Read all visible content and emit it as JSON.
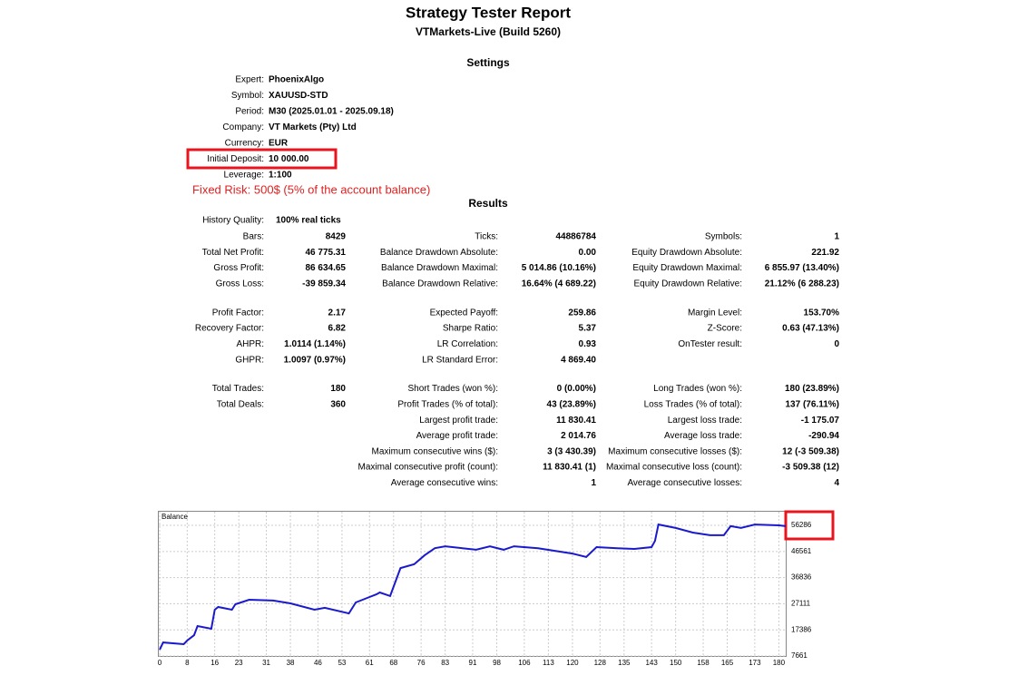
{
  "header": {
    "title": "Strategy Tester Report",
    "subtitle": "VTMarkets-Live (Build 5260)"
  },
  "settings": {
    "heading": "Settings",
    "rows": [
      [
        "Expert:",
        "PhoenixAlgo"
      ],
      [
        "Symbol:",
        "XAUUSD-STD"
      ],
      [
        "Period:",
        "M30 (2025.01.01 - 2025.09.18)"
      ],
      [
        "Company:",
        "VT Markets (Pty) Ltd"
      ],
      [
        "Currency:",
        "EUR"
      ],
      [
        "Initial Deposit:",
        "10 000.00"
      ],
      [
        "Leverage:",
        "1:100"
      ]
    ]
  },
  "note": "Fixed Risk: 500$ (5% of the account balance)",
  "results": {
    "heading": "Results",
    "history_quality": [
      "History Quality:",
      "100% real ticks"
    ],
    "groups": [
      [
        [
          [
            "Bars:",
            "8429"
          ],
          [
            "Ticks:",
            "44886784"
          ],
          [
            "Symbols:",
            "1"
          ]
        ],
        [
          [
            "Total Net Profit:",
            "46 775.31"
          ],
          [
            "Balance Drawdown Absolute:",
            "0.00"
          ],
          [
            "Equity Drawdown Absolute:",
            "221.92"
          ]
        ],
        [
          [
            "Gross Profit:",
            "86 634.65"
          ],
          [
            "Balance Drawdown Maximal:",
            "5 014.86 (10.16%)"
          ],
          [
            "Equity Drawdown Maximal:",
            "6 855.97 (13.40%)"
          ]
        ],
        [
          [
            "Gross Loss:",
            "-39 859.34"
          ],
          [
            "Balance Drawdown Relative:",
            "16.64% (4 689.22)"
          ],
          [
            "Equity Drawdown Relative:",
            "21.12% (6 288.23)"
          ]
        ]
      ],
      [
        [
          [
            "Profit Factor:",
            "2.17"
          ],
          [
            "Expected Payoff:",
            "259.86"
          ],
          [
            "Margin Level:",
            "153.70%"
          ]
        ],
        [
          [
            "Recovery Factor:",
            "6.82"
          ],
          [
            "Sharpe Ratio:",
            "5.37"
          ],
          [
            "Z-Score:",
            "0.63 (47.13%)"
          ]
        ],
        [
          [
            "AHPR:",
            "1.0114 (1.14%)"
          ],
          [
            "LR Correlation:",
            "0.93"
          ],
          [
            "OnTester result:",
            "0"
          ]
        ],
        [
          [
            "GHPR:",
            "1.0097 (0.97%)"
          ],
          [
            "LR Standard Error:",
            "4 869.40"
          ],
          null
        ]
      ],
      [
        [
          [
            "Total Trades:",
            "180"
          ],
          [
            "Short Trades (won %):",
            "0 (0.00%)"
          ],
          [
            "Long Trades (won %):",
            "180 (23.89%)"
          ]
        ],
        [
          [
            "Total Deals:",
            "360"
          ],
          [
            "Profit Trades (% of total):",
            "43 (23.89%)"
          ],
          [
            "Loss Trades (% of total):",
            "137 (76.11%)"
          ]
        ],
        [
          null,
          [
            "Largest profit trade:",
            "11 830.41"
          ],
          [
            "Largest loss trade:",
            "-1 175.07"
          ]
        ],
        [
          null,
          [
            "Average profit trade:",
            "2 014.76"
          ],
          [
            "Average loss trade:",
            "-290.94"
          ]
        ],
        [
          null,
          [
            "Maximum consecutive wins ($):",
            "3 (3 430.39)"
          ],
          [
            "Maximum consecutive losses ($):",
            "12 (-3 509.38)"
          ]
        ],
        [
          null,
          [
            "Maximal consecutive profit (count):",
            "11 830.41 (1)"
          ],
          [
            "Maximal consecutive loss (count):",
            "-3 509.38 (12)"
          ]
        ],
        [
          null,
          [
            "Average consecutive wins:",
            "1"
          ],
          [
            "Average consecutive losses:",
            "4"
          ]
        ]
      ]
    ]
  },
  "chart_data": {
    "type": "line",
    "title": "Balance",
    "x": [
      0,
      1,
      7,
      8,
      10,
      11,
      15,
      16,
      17,
      21,
      22,
      26,
      33,
      38,
      45,
      48,
      55,
      57,
      61,
      63,
      64,
      67,
      70,
      74,
      77,
      80,
      83,
      88,
      92,
      96,
      100,
      103,
      110,
      120,
      124,
      127,
      133,
      138,
      143,
      144,
      145,
      150,
      155,
      160,
      164,
      166,
      169,
      173,
      180,
      182
    ],
    "series": [
      {
        "name": "Balance",
        "color": "#1a1acc",
        "values": [
          10000,
          12700,
          12050,
          13400,
          15400,
          18800,
          17800,
          24900,
          25900,
          24900,
          26900,
          28600,
          28300,
          27250,
          24900,
          25600,
          23500,
          27600,
          29600,
          30600,
          31300,
          30000,
          40400,
          41800,
          45100,
          47800,
          48500,
          47800,
          47200,
          48500,
          47200,
          48500,
          47800,
          45800,
          44500,
          48200,
          47800,
          47500,
          48200,
          50500,
          56600,
          55300,
          53600,
          52600,
          52600,
          56000,
          55300,
          56600,
          56300,
          56000
        ]
      }
    ],
    "xlim": [
      0,
      182
    ],
    "ylim": [
      7661,
      61700
    ],
    "xticks": [
      0,
      8,
      16,
      23,
      31,
      38,
      46,
      53,
      61,
      68,
      76,
      83,
      91,
      98,
      106,
      113,
      120,
      128,
      135,
      143,
      150,
      158,
      165,
      173,
      180
    ],
    "yticks": [
      7661,
      17386,
      27111,
      36836,
      46561,
      56286
    ],
    "grid": true
  }
}
